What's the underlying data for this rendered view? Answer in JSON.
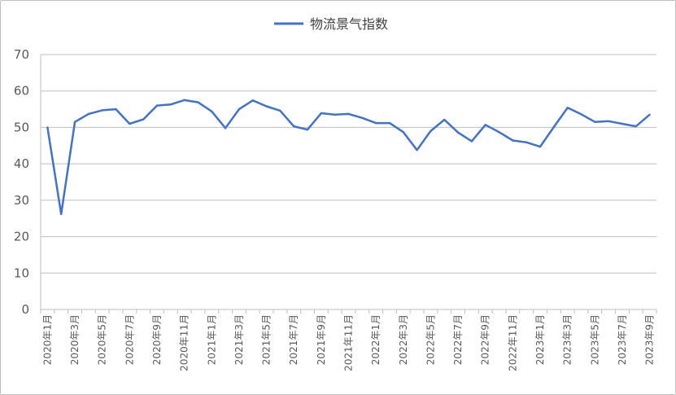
{
  "chart_data": {
    "type": "line",
    "title": "",
    "xlabel": "",
    "ylabel": "",
    "ylim": [
      0,
      70
    ],
    "y_ticks": [
      0,
      10,
      20,
      30,
      40,
      50,
      60,
      70
    ],
    "grid": "horizontal",
    "legend_placement": "top",
    "x_tick_labels": [
      "2020年1月",
      "2020年3月",
      "2020年5月",
      "2020年7月",
      "2020年9月",
      "2020年11月",
      "2021年1月",
      "2021年3月",
      "2021年5月",
      "2021年7月",
      "2021年9月",
      "2021年11月",
      "2022年1月",
      "2022年3月",
      "2022年5月",
      "2022年7月",
      "2022年9月",
      "2022年11月",
      "2023年1月",
      "2023年3月",
      "2023年5月",
      "2023年7月",
      "2023年9月"
    ],
    "series": [
      {
        "name": "物流景气指数",
        "color": "#4472c4",
        "values": [
          50.0,
          26.2,
          51.5,
          53.7,
          54.7,
          55.0,
          51.0,
          52.2,
          56.0,
          56.3,
          57.5,
          56.9,
          54.4,
          49.8,
          55.0,
          57.4,
          55.8,
          54.6,
          50.3,
          49.4,
          53.9,
          53.5,
          53.7,
          52.6,
          51.2,
          51.2,
          48.7,
          43.8,
          49.0,
          52.1,
          48.6,
          46.2,
          50.7,
          48.7,
          46.4,
          45.9,
          44.7,
          50.1,
          55.4,
          53.6,
          51.5,
          51.7,
          51.0,
          50.3,
          53.5
        ]
      }
    ]
  }
}
